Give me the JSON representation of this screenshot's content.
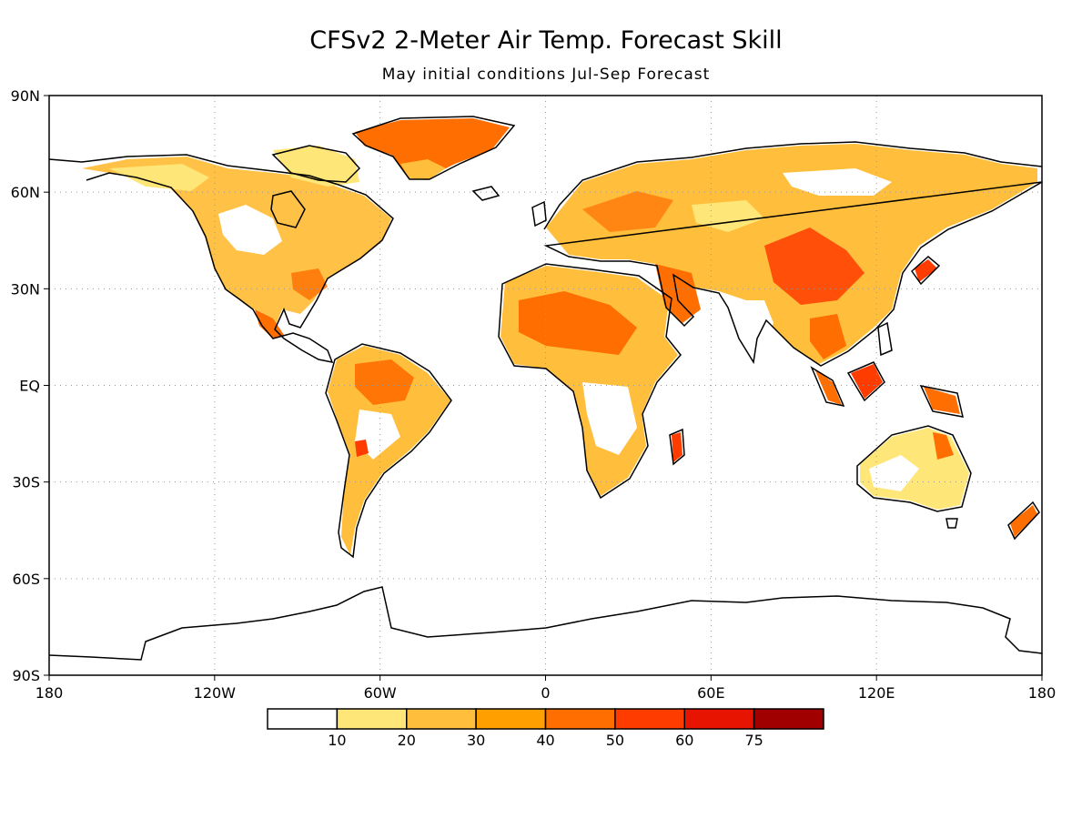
{
  "title": "CFSv2 2-Meter Air Temp. Forecast Skill",
  "subtitle": "May initial conditions   Jul-Sep Forecast",
  "lon_ticks": [
    "180",
    "120W",
    "60W",
    "0",
    "60E",
    "120E",
    "180"
  ],
  "lat_ticks": [
    "90N",
    "60N",
    "30N",
    "EQ",
    "30S",
    "60S",
    "90S"
  ],
  "colorbar": {
    "bins": [
      {
        "color": "#ffffff"
      },
      {
        "color": "#ffe678"
      },
      {
        "color": "#ffbe3c"
      },
      {
        "color": "#ffa000"
      },
      {
        "color": "#ff6e00"
      },
      {
        "color": "#ff3c00"
      },
      {
        "color": "#e61400"
      },
      {
        "color": "#a00000"
      }
    ],
    "labels": [
      "10",
      "20",
      "30",
      "40",
      "50",
      "60",
      "75"
    ]
  },
  "colors": {
    "coast": "#000000",
    "grid": "#9a9a9a",
    "low_skill": "#ffe678",
    "mid_skill": "#ffbe3c",
    "high_skill": "#ff6e00",
    "top_skill": "#ff3c00"
  }
}
